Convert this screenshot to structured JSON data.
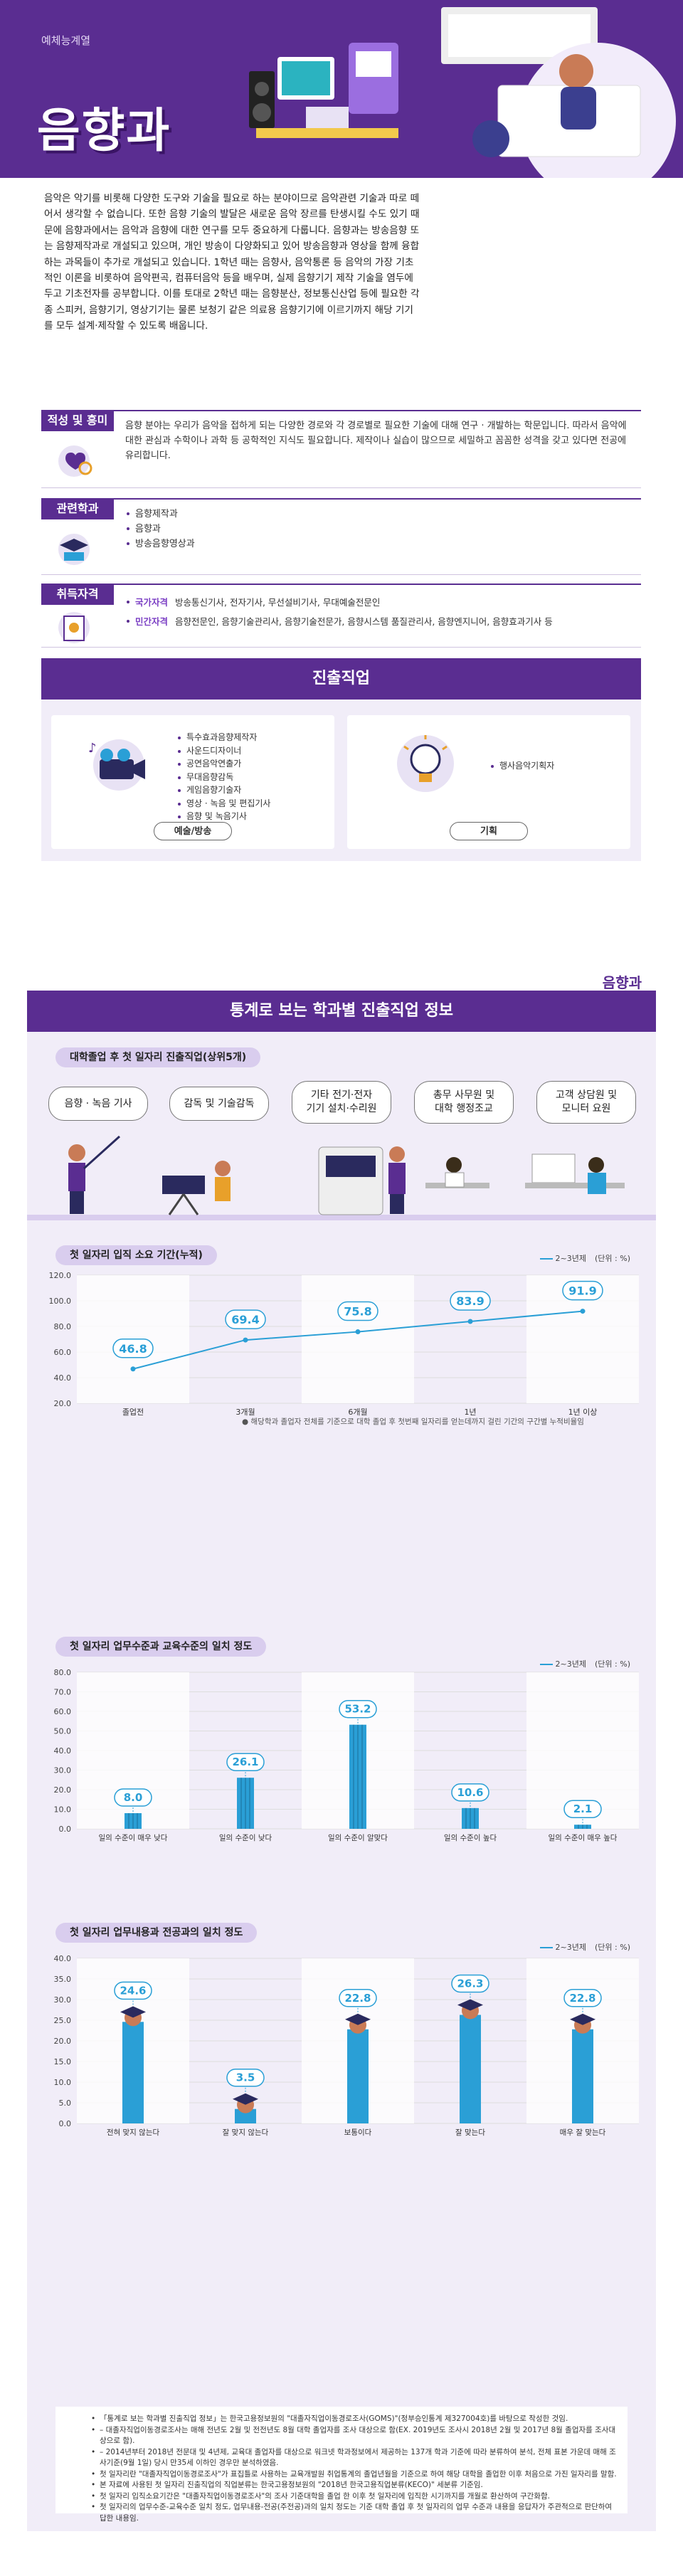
{
  "hero": {
    "category": "예체능계열",
    "title": "음향과",
    "bg_color": "#5a2d91"
  },
  "intro": "음악은 악기를 비롯해 다양한 도구와 기술을 필요로 하는 분야이므로 음악관련 기술과 따로 떼어서 생각할 수 없습니다. 또한 음향 기술의 발달은 새로운 음악 장르를 탄생시킬 수도 있기 때문에 음향과에서는 음악과 음향에 대한 연구를 모두 중요하게 다룹니다. 음향과는 방송음향 또는 음향제작과로 개설되고 있으며, 개인 방송이 다양화되고 있어 방송음향과 영상을 함께 융합하는 과목들이 추가로 개설되고 있습니다. 1학년 때는 음향사, 음악통론 등 음악의 가장 기초적인 이론을 비롯하여 음악편곡, 컴퓨터음악 등을 배우며, 실제 음향기기 제작 기술을 염두에 두고 기초전자를 공부합니다. 이를 토대로 2학년 때는 음향분산, 정보통신산업 등에 필요한 각종 스피커, 음향기기, 영상기기는 물론 보청기 같은 의료용 음향기기에 이르기까지 해당 기기를 모두 설계·제작할 수 있도록 배웁니다.",
  "aptitude": {
    "label": "적성 및 흥미",
    "text": "음향 분야는 우리가 음악을 접하게 되는 다양한 경로와 각 경로별로 필요한 기술에 대해 연구 · 개발하는 학문입니다. 따라서 음악에 대한 관심과 수학이나 과학 등 공학적인 지식도 필요합니다. 제작이나 실습이 많으므로 세밀하고 꼼꼼한 성격을 갖고 있다면 전공에 유리합니다."
  },
  "related": {
    "label": "관련학과",
    "items": [
      "음향제작과",
      "음향과",
      "방송음향영상과"
    ]
  },
  "certs": {
    "label": "취득자격",
    "national_label": "국가자격",
    "national": "방송통신기사, 전자기사, 무선설비기사, 무대예술전문인",
    "private_label": "민간자격",
    "private": "음향전문인, 음향기술관리사, 음향기술전문가, 음향시스템 품질관리사, 음향엔지니어, 음향효과기사 등"
  },
  "jobs": {
    "title": "진출직업",
    "left_items": [
      "특수효과음향제작자",
      "사운드디자이너",
      "공연음악연출가",
      "무대음향감독",
      "게임음향기술자",
      "영상 · 녹음 및 편집기사",
      "음향 및 녹음기사"
    ],
    "left_tag": "예술/방송",
    "right_items": [
      "행사음악기획자"
    ],
    "right_tag": "기획"
  },
  "page_name": "음향과",
  "stats": {
    "title": "통계로 보는 학과별 진출직업 정보",
    "top_jobs_label": "대학졸업 후 첫 일자리 진출직업(상위5개)",
    "top_jobs": [
      "음향 · 녹음 기사",
      "감독 및 기술감독",
      "기타 전기·전자\n기기 설치·수리원",
      "총무 사무원 및\n대학 행정조교",
      "고객 상담원 및\n모니터 요원"
    ],
    "legend_label": "2~3년제",
    "unit_label": "(단위 : %)",
    "footnote": "● 해당학과 졸업자 전체를 기준으로 대학 졸업 후 첫번째 일자리를 얻는데까지 걸린 기간의 구간별 누적비율임",
    "notes": [
      "「통계로 보는 학과별 진출직업 정보」는 한국고용정보원의 \"대졸자직업이동경로조사(GOMS)\"(정부승인통계 제327004호)를 바탕으로 작성한 것임.",
      "– 대졸자직업이동경로조사는 매해 전년도 2월 및 전전년도 8월 대학 졸업자를 조사 대상으로 함(EX. 2019년도 조사시 2018년 2월 및 2017년 8월 졸업자를 조사대상으로 함).",
      "– 2014년부터 2018년 전문대 및 4년제, 교육대 졸업자를 대상으로 워크넷 학과정보에서 제공하는 137개 학과 기준에 따라 분류하여 분석, 전체 표본 가운데 매해 조사기준(9월 1일) 당시 만35세 이하인 경우만 분석하였음.",
      "첫 일자리란 \"대졸자직업이동경로조사\"가 표집틀로 사용하는 교육개발원 취업통계의 졸업년월을 기준으로 하여 해당 대학을 졸업한 이후 처음으로 가진 일자리를 말함.",
      "본 자료에 사용된 첫 일자리 진출직업의 직업분류는 한국고용정보원의 \"2018년 한국고용직업분류(KECO)\" 세분류 기준임.",
      "첫 일자리 입직소요기간은 \"대졸자직업이동경로조사\"의 조사 기준대학을 졸업 한 이후 첫 일자리에 입직한 시기까지를 개월로 환산하여 구간화함.",
      "첫 일자리의 업무수준-교육수준 일치 정도, 업무내용-전공(주전공)과의 일치 정도는 기준 대학 졸업 후 첫 일자리의 업무 수준과 내용을 응답자가 주관적으로 판단하여 답한 내용임."
    ]
  },
  "chart_data": [
    {
      "type": "line",
      "title": "첫 일자리 입직 소요 기간(누적)",
      "categories": [
        "졸업전",
        "3개월",
        "6개월",
        "1년",
        "1년 이상"
      ],
      "series": [
        {
          "name": "2~3년제",
          "values": [
            46.8,
            69.4,
            75.8,
            83.9,
            91.9
          ]
        }
      ],
      "ylim": [
        20,
        120
      ],
      "yticks": [
        "120.0",
        "100.0",
        "80.0",
        "60.0",
        "40.0",
        "20.0"
      ],
      "color": "#2a9fd6"
    },
    {
      "type": "bar",
      "title": "첫 일자리 업무수준과 교육수준의 일치 정도",
      "categories": [
        "일의 수준이 매우 낮다",
        "일의 수준이 낮다",
        "일의 수준이 알맞다",
        "일의 수준이 높다",
        "일의 수준이 매우 높다"
      ],
      "series": [
        {
          "name": "2~3년제",
          "values": [
            8.0,
            26.1,
            53.2,
            10.6,
            2.1
          ]
        }
      ],
      "ylim": [
        0,
        80
      ],
      "yticks": [
        "80.0",
        "70.0",
        "60.0",
        "50.0",
        "40.0",
        "30.0",
        "20.0",
        "10.0",
        "0.0"
      ],
      "color": "#2a9fd6"
    },
    {
      "type": "bar",
      "title": "첫 일자리 업무내용과 전공과의 일치 정도",
      "categories": [
        "전혀 맞지 않는다",
        "잘 맞지 않는다",
        "보통이다",
        "잘 맞는다",
        "매우 잘 맞는다"
      ],
      "series": [
        {
          "name": "2~3년제",
          "values": [
            24.6,
            3.5,
            22.8,
            26.3,
            22.8
          ]
        }
      ],
      "ylim": [
        0,
        40
      ],
      "yticks": [
        "40.0",
        "35.0",
        "30.0",
        "25.0",
        "20.0",
        "15.0",
        "10.0",
        "5.0",
        "0.0"
      ],
      "color": "#2a9fd6"
    }
  ]
}
